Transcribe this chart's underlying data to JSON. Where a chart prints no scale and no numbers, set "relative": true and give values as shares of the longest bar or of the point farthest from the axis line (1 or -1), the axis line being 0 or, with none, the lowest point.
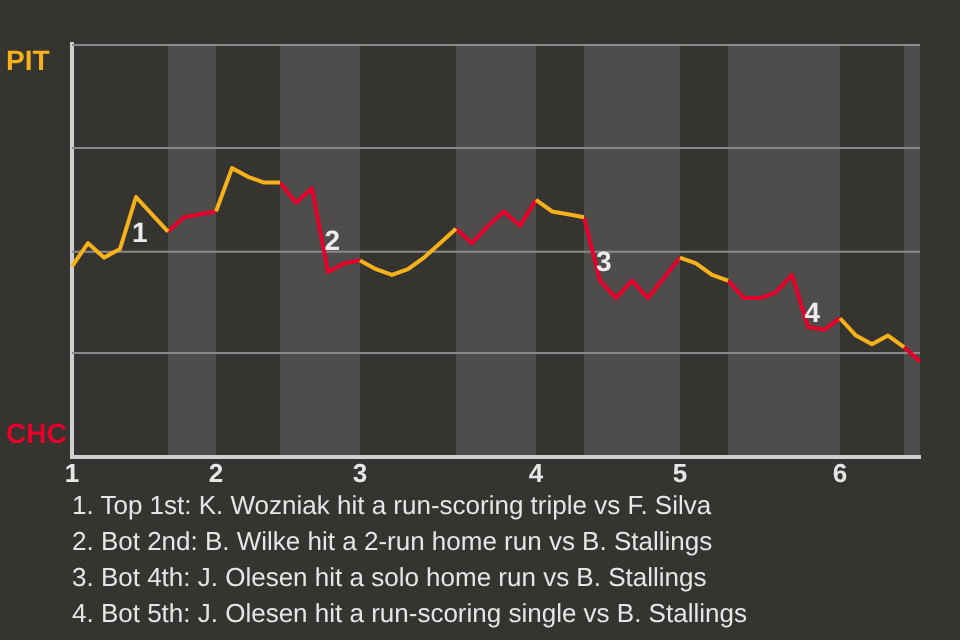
{
  "chart_data": {
    "type": "line",
    "categories": [
      "1",
      null,
      null,
      null,
      null,
      null,
      null,
      null,
      null,
      "2",
      null,
      null,
      null,
      null,
      null,
      null,
      null,
      null,
      "3",
      null,
      null,
      null,
      null,
      null,
      null,
      null,
      null,
      null,
      null,
      "4",
      null,
      null,
      null,
      null,
      null,
      null,
      null,
      null,
      "5",
      null,
      null,
      null,
      null,
      null,
      null,
      null,
      null,
      null,
      "6",
      null,
      null,
      null,
      null,
      null
    ],
    "relative": true,
    "series": [
      {
        "name": "PIT",
        "color": "#f7b21b",
        "values": [
          0.66,
          0.74,
          0.69,
          0.72,
          0.9,
          0.84,
          0.78,
          null,
          null,
          0.85,
          1,
          0.97,
          0.95,
          0.95,
          null,
          null,
          null,
          null,
          0.68,
          0.65,
          0.63,
          0.65,
          0.69,
          0.74,
          0.79,
          null,
          null,
          null,
          null,
          0.89,
          0.85,
          0.84,
          0.83,
          null,
          null,
          null,
          null,
          null,
          0.69,
          0.67,
          0.63,
          0.61,
          null,
          null,
          null,
          null,
          null,
          null,
          0.48,
          0.42,
          0.39,
          0.42,
          0.38,
          null
        ]
      },
      {
        "name": "CHC",
        "color": "#e4002b",
        "values": [
          null,
          null,
          null,
          null,
          null,
          null,
          0.78,
          0.83,
          0.84,
          0.85,
          null,
          null,
          null,
          0.95,
          0.88,
          0.93,
          0.64,
          0.67,
          0.68,
          null,
          null,
          null,
          null,
          null,
          0.79,
          0.74,
          0.8,
          0.85,
          0.8,
          0.89,
          null,
          null,
          0.83,
          0.61,
          0.55,
          0.61,
          0.55,
          0.62,
          0.69,
          null,
          null,
          0.61,
          0.55,
          0.55,
          0.57,
          0.63,
          0.45,
          0.44,
          0.48,
          null,
          null,
          null,
          0.38,
          0.33
        ]
      }
    ],
    "marker": "none",
    "ref_lines": [
      {
        "axis": "y",
        "value": 0.36,
        "color": "#8a8a8a"
      },
      {
        "axis": "y",
        "value": 0.71,
        "color": "#8a8a8a"
      },
      {
        "axis": "y",
        "value": 1.07,
        "color": "#8a8a8a"
      }
    ],
    "annotations": [
      "1",
      "2",
      "3",
      "4",
      "1. Top 1st: K. Wozniak hit a run-scoring triple vs F. Silva",
      "2. Bot 2nd: B. Wilke hit a 2-run home run vs B. Stallings",
      "3. Bot 4th: J. Olesen hit a solo home run vs B. Stallings",
      "4. Bot 5th: J. Olesen hit a run-scoring single vs B. Stallings"
    ]
  }
}
